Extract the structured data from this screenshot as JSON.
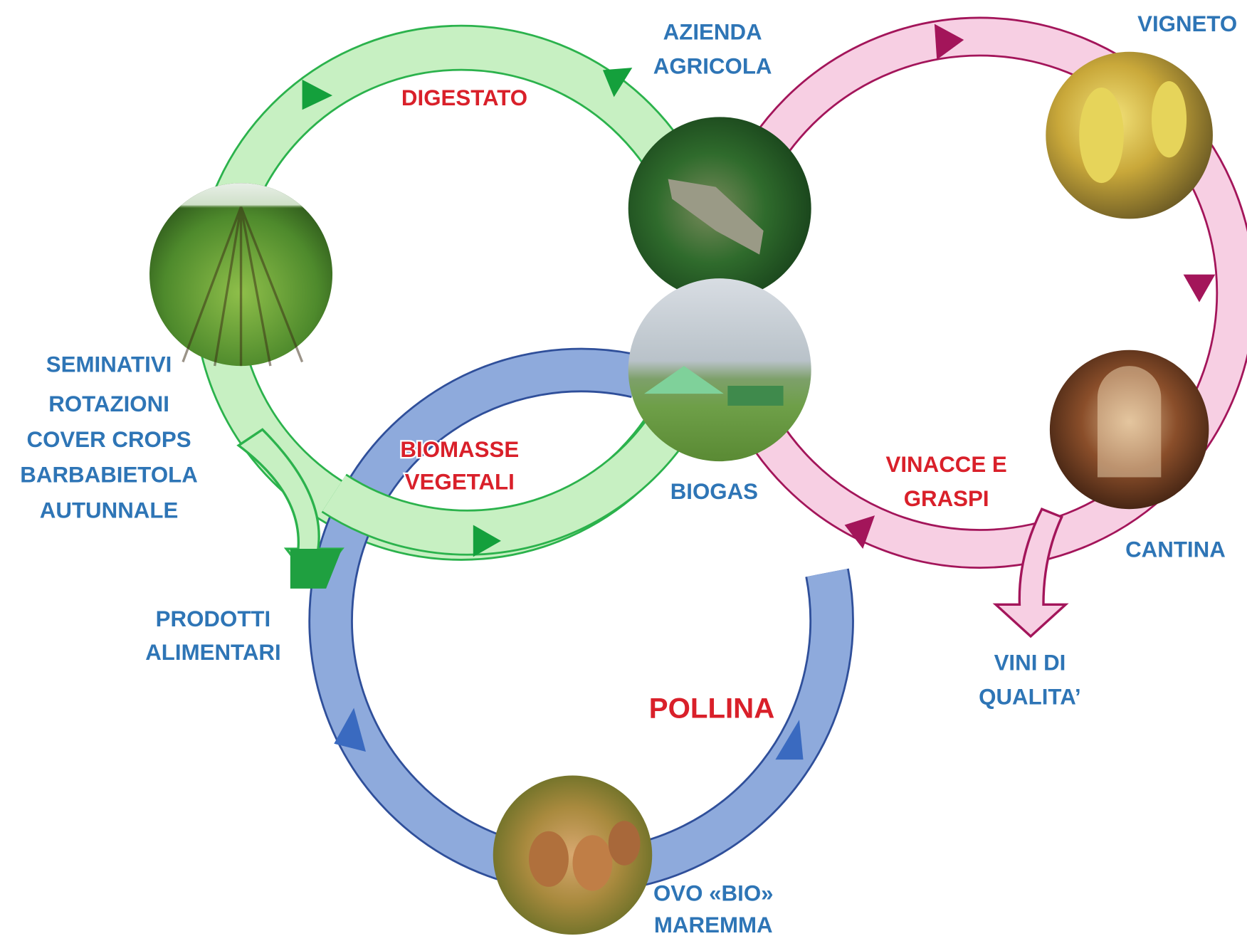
{
  "places": [
    {
      "lines": [
        "AZIENDA",
        "AGRICOLA"
      ]
    },
    {
      "lines": [
        "VIGNETO"
      ]
    },
    {
      "lines": [
        "SEMINATIVI"
      ]
    },
    {
      "lines": [
        "ROTAZIONI",
        "COVER CROPS",
        "BARBABIETOLA",
        "AUTUNNALE"
      ]
    },
    {
      "lines": [
        "BIOGAS"
      ]
    },
    {
      "lines": [
        "CANTINA"
      ]
    },
    {
      "lines": [
        "PRODOTTI",
        "ALIMENTARI"
      ]
    },
    {
      "lines": [
        "VINI DI",
        "QUALITA’"
      ]
    },
    {
      "lines": [
        "OVO «BIO»",
        "MAREMMA"
      ]
    }
  ],
  "flows": [
    {
      "lines": [
        "DIGESTATO"
      ]
    },
    {
      "lines": [
        "BIOMASSE",
        "VEGETALI"
      ]
    },
    {
      "lines": [
        "VINACCE E",
        "GRASPI"
      ]
    },
    {
      "lines": [
        "POLLINA"
      ]
    }
  ]
}
